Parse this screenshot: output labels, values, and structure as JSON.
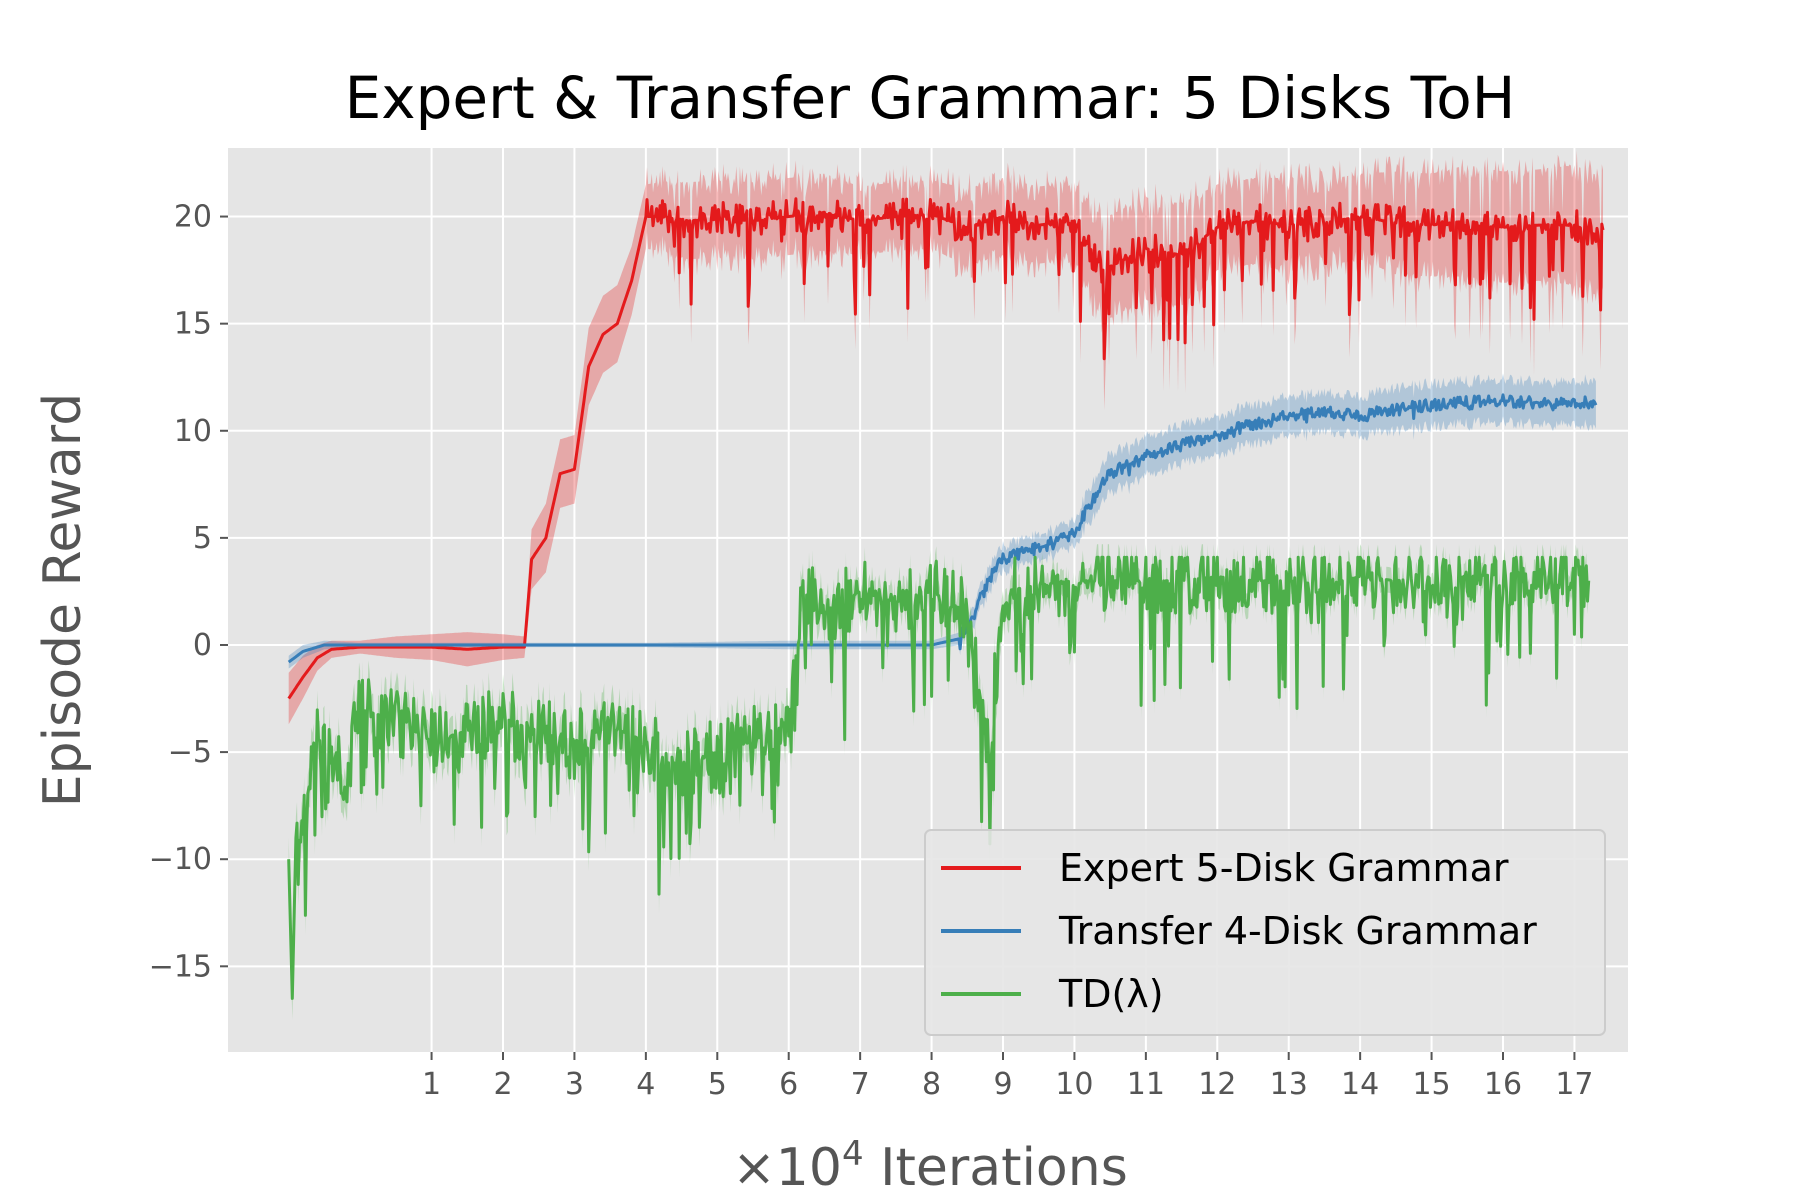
{
  "chart_data": {
    "type": "line",
    "title": "Expert & Transfer Grammar: 5 Disks ToH",
    "xlabel_prefix": "×10",
    "xlabel_exp": "4",
    "xlabel_suffix": " Iterations",
    "ylabel": "Episode Reward",
    "xlim": [
      -1.85,
      17.75
    ],
    "ylim": [
      -19,
      23.2
    ],
    "xticks": [
      1,
      2,
      3,
      4,
      5,
      6,
      7,
      8,
      9,
      10,
      11,
      12,
      13,
      14,
      15,
      16,
      17
    ],
    "xtick_labels": [
      "1",
      "2",
      "3",
      "4",
      "5",
      "6",
      "7",
      "8",
      "9",
      "10",
      "11",
      "12",
      "13",
      "14",
      "15",
      "16",
      "17"
    ],
    "yticks": [
      20,
      15,
      10,
      5,
      0,
      -5,
      -10,
      -15
    ],
    "ytick_labels": [
      "20",
      "15",
      "10",
      "5",
      "0",
      "−5",
      "−10",
      "−15"
    ],
    "grid": true,
    "legend_position": "lower-right",
    "background_color": "#e5e5e5",
    "series": [
      {
        "name": "Expert 5-Disk Grammar",
        "color": "#e41a1c",
        "x": [
          -1.0,
          -0.8,
          -0.6,
          -0.4,
          0.0,
          0.5,
          1.0,
          1.5,
          2.0,
          2.3,
          2.4,
          2.6,
          2.8,
          3.0,
          3.2,
          3.4,
          3.6,
          3.8,
          4.0,
          4.2,
          4.6,
          5.0,
          5.5,
          6.0,
          6.5,
          7.0,
          7.5,
          8.0,
          8.5,
          9.0,
          9.5,
          10.0,
          10.4,
          11.0,
          11.5,
          12.0,
          12.5,
          13.0,
          13.5,
          14.0,
          14.5,
          15.0,
          15.5,
          16.0,
          16.5,
          17.0,
          17.4
        ],
        "y": [
          -2.5,
          -1.5,
          -0.6,
          -0.2,
          -0.1,
          -0.1,
          -0.1,
          -0.2,
          -0.1,
          -0.1,
          4.0,
          5.0,
          8.0,
          8.2,
          13.0,
          14.5,
          15.0,
          17.0,
          20.0,
          20.0,
          19.8,
          19.9,
          19.8,
          20.0,
          20.2,
          19.8,
          20.0,
          20.1,
          19.5,
          20.0,
          19.6,
          19.8,
          17.5,
          18.5,
          18.2,
          19.5,
          19.8,
          19.6,
          19.7,
          20.0,
          19.7,
          19.6,
          19.8,
          19.5,
          19.6,
          19.6,
          19.0
        ],
        "band": [
          1.2,
          1.0,
          0.6,
          0.4,
          0.3,
          0.5,
          0.6,
          0.8,
          0.6,
          0.5,
          1.4,
          1.6,
          1.6,
          1.6,
          1.8,
          1.8,
          1.8,
          1.6,
          1.5,
          1.6,
          1.8,
          1.8,
          1.8,
          1.8,
          1.8,
          1.6,
          1.6,
          1.6,
          1.8,
          1.8,
          1.8,
          1.8,
          2.4,
          2.4,
          2.4,
          2.0,
          2.0,
          2.2,
          2.0,
          2.0,
          2.4,
          2.4,
          2.6,
          2.6,
          2.6,
          2.8,
          2.8
        ],
        "noise_down": 4.5,
        "noise_up": 1.6,
        "spike_freq": 0.1,
        "noise_freq": 0.65,
        "cap": 21.4,
        "noise_start": 4.0
      },
      {
        "name": "Transfer 4-Disk Grammar",
        "color": "#377eb8",
        "x": [
          -1.0,
          -0.8,
          -0.5,
          0.0,
          2.0,
          4.0,
          6.0,
          8.0,
          8.4,
          8.6,
          8.8,
          9.0,
          9.5,
          10.0,
          10.2,
          10.5,
          11.0,
          11.5,
          12.0,
          12.5,
          13.0,
          13.5,
          14.0,
          14.5,
          15.0,
          15.5,
          16.0,
          16.5,
          17.0,
          17.3
        ],
        "y": [
          -0.8,
          -0.3,
          0.0,
          0.0,
          0.0,
          0.0,
          0.0,
          0.0,
          0.3,
          1.5,
          3.0,
          4.0,
          4.5,
          5.2,
          6.5,
          8.0,
          8.8,
          9.3,
          9.8,
          10.3,
          10.7,
          10.9,
          10.7,
          11.0,
          11.2,
          11.3,
          11.4,
          11.3,
          11.2,
          11.4
        ],
        "band": [
          0.3,
          0.3,
          0.2,
          0.1,
          0.1,
          0.1,
          0.2,
          0.2,
          0.3,
          0.5,
          0.6,
          0.6,
          0.6,
          0.6,
          0.8,
          0.9,
          0.9,
          0.9,
          0.9,
          0.9,
          0.9,
          0.9,
          0.9,
          1.0,
          1.0,
          1.0,
          1.0,
          1.0,
          1.0,
          1.1
        ],
        "noise_down": 0.6,
        "noise_up": 0.6,
        "spike_freq": 0.02,
        "noise_freq": 0.9,
        "cap": 12.0,
        "noise_start": 8.4
      },
      {
        "name": "TD(λ)",
        "color": "#4daf4a",
        "x": [
          -1.0,
          -0.95,
          -0.9,
          -0.8,
          -0.6,
          -0.4,
          -0.2,
          0.0,
          0.5,
          1.0,
          1.5,
          2.0,
          2.5,
          3.0,
          3.5,
          4.0,
          4.5,
          5.0,
          5.5,
          6.0,
          6.2,
          6.5,
          7.0,
          7.5,
          8.0,
          8.5,
          8.8,
          9.0,
          9.5,
          10.0,
          10.5,
          11.0,
          11.5,
          12.0,
          12.5,
          13.0,
          13.5,
          14.0,
          14.5,
          15.0,
          15.5,
          16.0,
          16.5,
          17.0,
          17.2
        ],
        "y": [
          -10.0,
          -16.5,
          -9.0,
          -8.5,
          -4.0,
          -5.0,
          -6.0,
          -3.0,
          -3.5,
          -4.5,
          -4.0,
          -3.5,
          -4.0,
          -4.5,
          -3.8,
          -4.5,
          -5.5,
          -5.0,
          -4.5,
          -3.5,
          2.5,
          1.5,
          2.5,
          2.0,
          2.5,
          1.5,
          -5.0,
          2.5,
          2.8,
          3.0,
          3.0,
          3.0,
          3.0,
          3.2,
          3.0,
          3.0,
          2.8,
          3.2,
          3.0,
          3.2,
          3.2,
          3.3,
          3.4,
          3.3,
          3.2
        ],
        "band": [
          1.0,
          1.0,
          1.0,
          0.9,
          0.9,
          0.9,
          0.9,
          0.9,
          0.9,
          0.9,
          0.9,
          0.9,
          0.9,
          0.9,
          0.9,
          0.9,
          0.9,
          0.9,
          0.9,
          0.9,
          0.8,
          0.8,
          0.7,
          0.7,
          0.7,
          0.7,
          0.9,
          0.7,
          0.6,
          0.6,
          0.6,
          0.6,
          0.6,
          0.6,
          0.6,
          0.6,
          0.6,
          0.6,
          0.6,
          0.6,
          0.6,
          0.6,
          0.6,
          0.6,
          0.6
        ],
        "noise_down": 5.5,
        "noise_up": 3.2,
        "spike_freq": 0.14,
        "noise_freq": 0.8,
        "cap": 4.1,
        "noise_start": -0.9
      }
    ]
  }
}
